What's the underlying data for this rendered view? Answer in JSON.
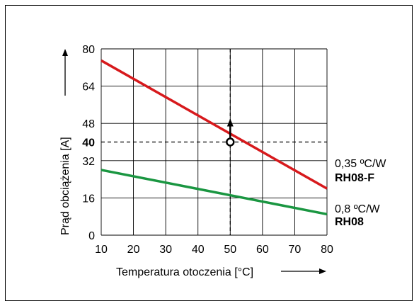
{
  "chart_data": {
    "type": "line",
    "xlabel": "Temperatura otoczenia [°C]",
    "ylabel": "Prąd obciążenia [A]",
    "xlim": [
      10,
      80
    ],
    "ylim": [
      0,
      80
    ],
    "x_ticks": [
      "10",
      "20",
      "30",
      "40",
      "50",
      "60",
      "70",
      "80"
    ],
    "y_ticks": [
      "0",
      "16",
      "32",
      "48",
      "64",
      "80"
    ],
    "grid": true,
    "series": [
      {
        "name": "RH08-F",
        "note": "0,35 ºC/W",
        "color": "#d7191c",
        "x": [
          10,
          80
        ],
        "y": [
          75,
          20
        ]
      },
      {
        "name": "RH08",
        "note": "0,8 ºC/W",
        "color": "#1a9641",
        "x": [
          10,
          80
        ],
        "y": [
          28,
          9
        ]
      }
    ],
    "marker": {
      "x": 50,
      "y": 40,
      "y_label": "40"
    }
  }
}
